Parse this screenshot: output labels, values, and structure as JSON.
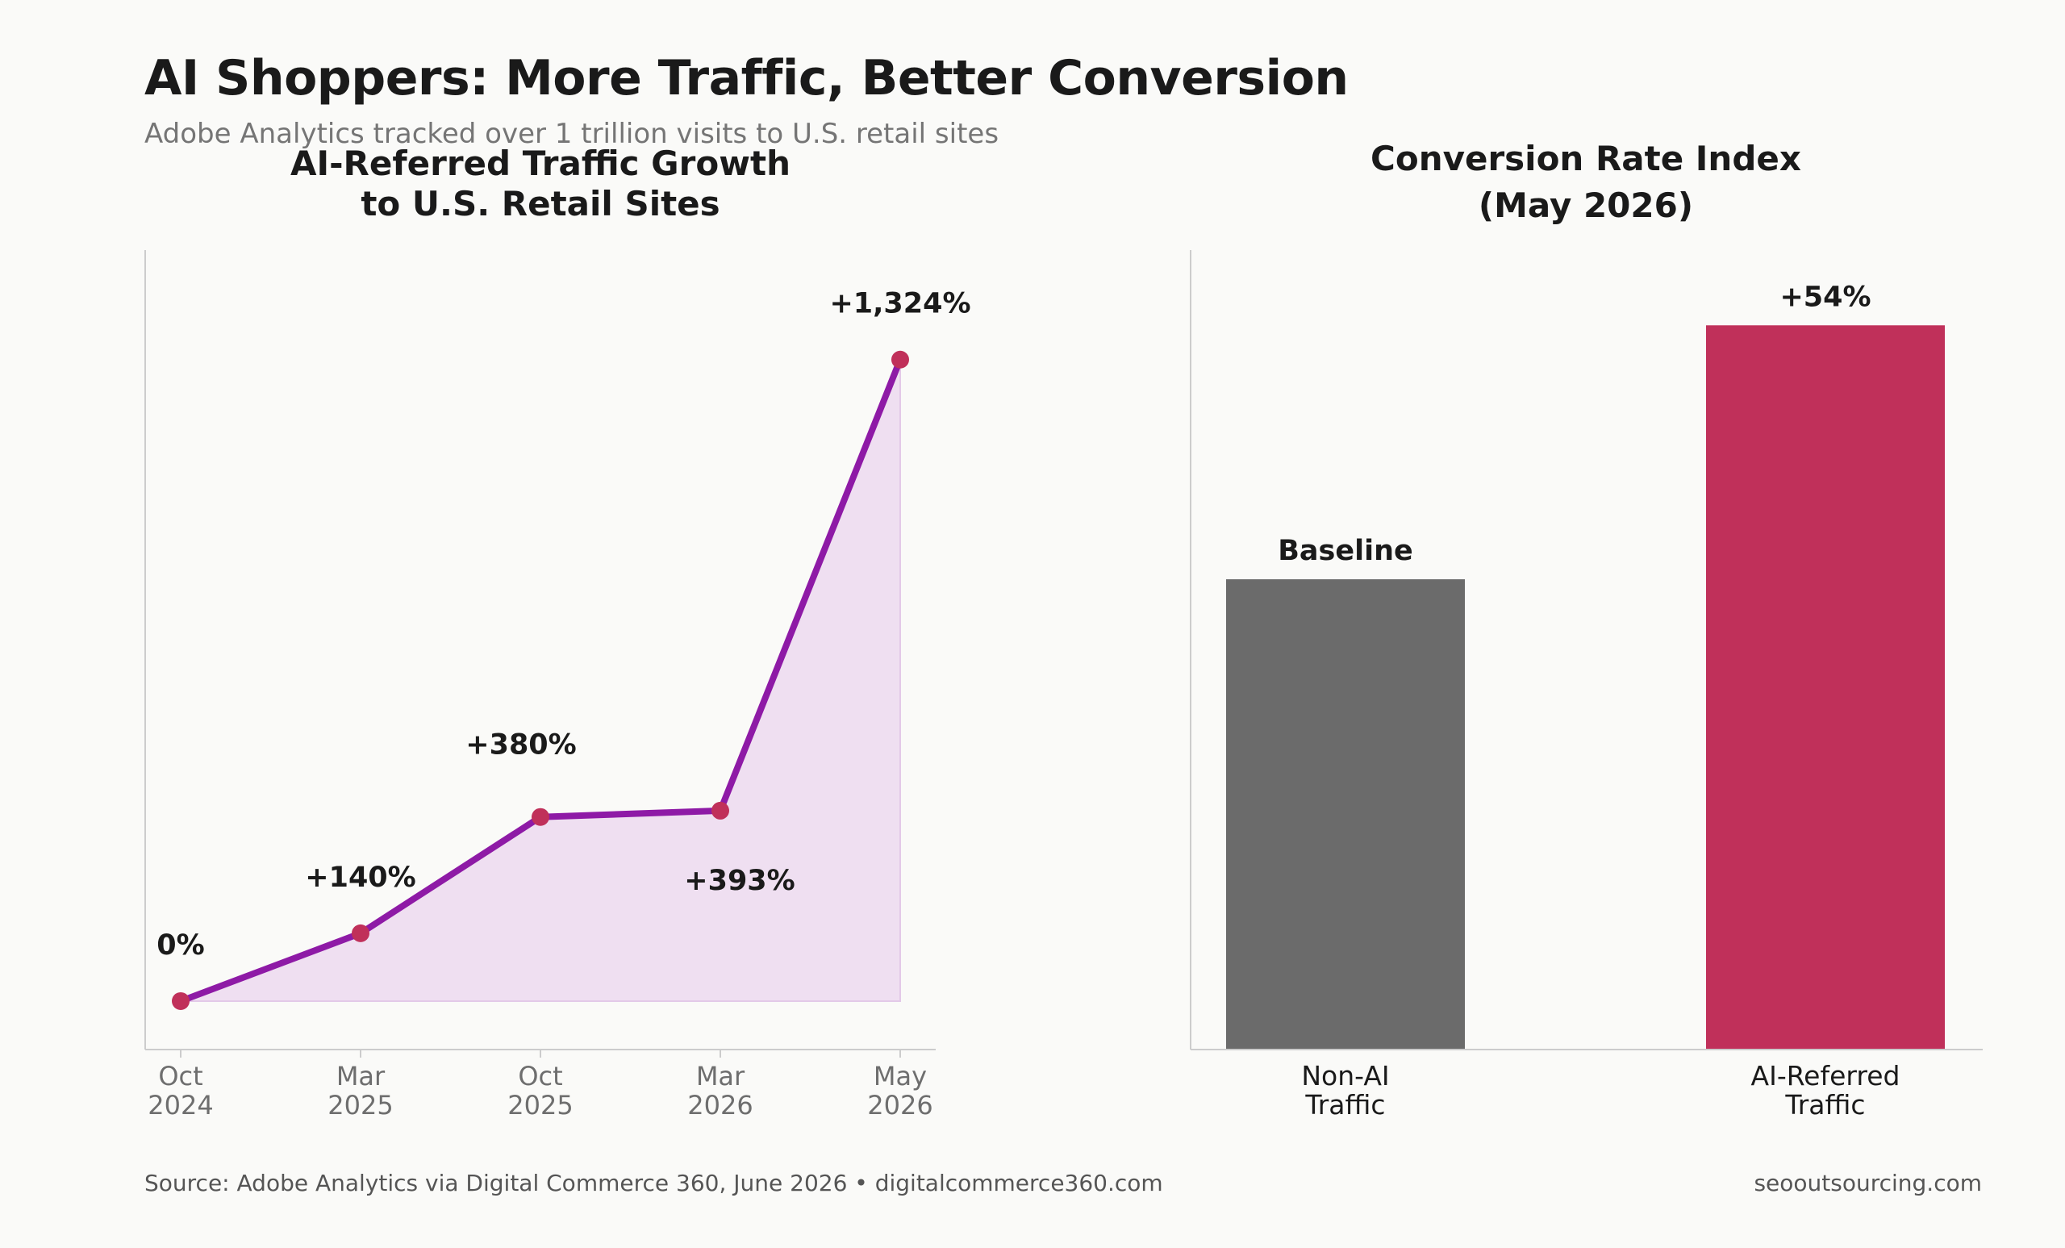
{
  "header": {
    "title": "AI Shoppers: More Traffic, Better Conversion",
    "subtitle": "Adobe Analytics tracked over 1 trillion visits to U.S. retail sites"
  },
  "footer": {
    "source": "Source: Adobe Analytics via Digital Commerce 360, June 2026  •  digitalcommerce360.com",
    "credit": "seooutsourcing.com"
  },
  "colors": {
    "line": "#8e1aa6",
    "area": "#efdff1",
    "marker": "#c0305a",
    "bar_baseline": "#6b6b6b",
    "bar_ai": "#c0305a",
    "axis": "#cccccc"
  },
  "chart_data": [
    {
      "type": "line",
      "title_lines": [
        "AI-Referred Traffic Growth",
        "to U.S. Retail Sites"
      ],
      "x": [
        [
          "Oct",
          "2024"
        ],
        [
          "Mar",
          "2025"
        ],
        [
          "Oct",
          "2025"
        ],
        [
          "Mar",
          "2026"
        ],
        [
          "May",
          "2026"
        ]
      ],
      "values": [
        0,
        140,
        380,
        393,
        1324
      ],
      "data_labels": [
        "0%",
        "+140%",
        "+380%",
        "+393%",
        "+1,324%"
      ],
      "ylim": [
        -100,
        1550
      ],
      "fill_area": true,
      "grid": false
    },
    {
      "type": "bar",
      "title_lines": [
        "Conversion Rate Index",
        "(May 2026)"
      ],
      "categories": [
        [
          "Non-AI",
          "Traffic"
        ],
        [
          "AI-Referred",
          "Traffic"
        ]
      ],
      "values": [
        100,
        154
      ],
      "data_labels": [
        "Baseline",
        "+54%"
      ],
      "ylim": [
        0,
        170
      ],
      "grid": false
    }
  ]
}
